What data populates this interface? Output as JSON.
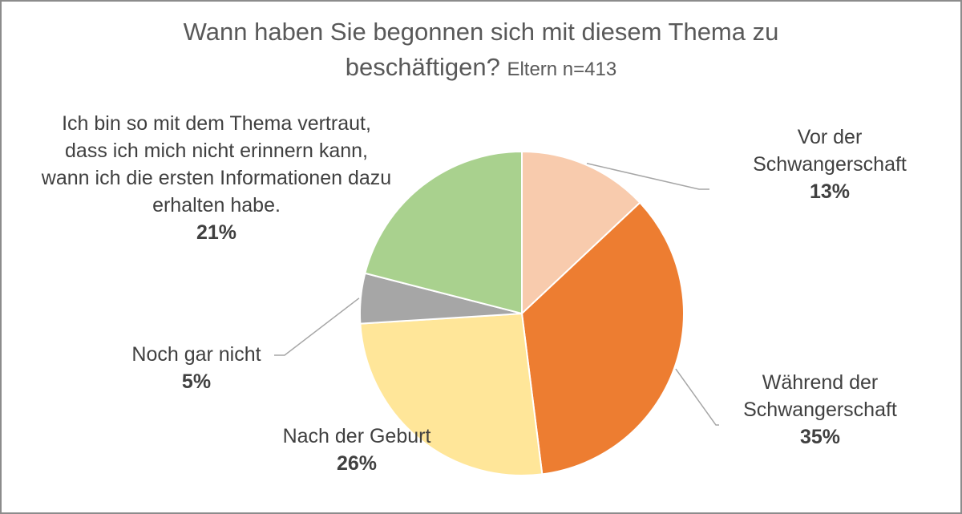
{
  "chart_data": {
    "type": "pie",
    "title_line1": "Wann haben Sie begonnen  sich mit diesem Thema zu",
    "title_line2": "beschäftigen?",
    "subtitle": "Eltern n=413",
    "start_angle_deg": 0,
    "direction": "clockwise",
    "slices": [
      {
        "label": "Vor der Schwangerschaft",
        "label_lines": [
          "Vor der",
          "Schwangerschaft"
        ],
        "value": 13,
        "value_label": "13%",
        "color": "#F8CBAD"
      },
      {
        "label": "Während der Schwangerschaft",
        "label_lines": [
          "Während der",
          "Schwangerschaft"
        ],
        "value": 35,
        "value_label": "35%",
        "color": "#ED7D31"
      },
      {
        "label": "Nach der Geburt",
        "label_lines": [
          "Nach der Geburt"
        ],
        "value": 26,
        "value_label": "26%",
        "color": "#FFE699"
      },
      {
        "label": "Noch gar nicht",
        "label_lines": [
          "Noch gar nicht"
        ],
        "value": 5,
        "value_label": "5%",
        "color": "#A6A6A6"
      },
      {
        "label": "Ich bin so mit dem Thema vertraut, dass ich mich nicht erinnern kann, wann ich die ersten Informationen dazu erhalten habe.",
        "label_lines": [
          "Ich bin so mit dem Thema vertraut,",
          "dass ich mich nicht erinnern kann,",
          "wann ich die ersten Informationen dazu",
          "erhalten habe."
        ],
        "value": 21,
        "value_label": "21%",
        "color": "#A9D18E"
      }
    ]
  }
}
